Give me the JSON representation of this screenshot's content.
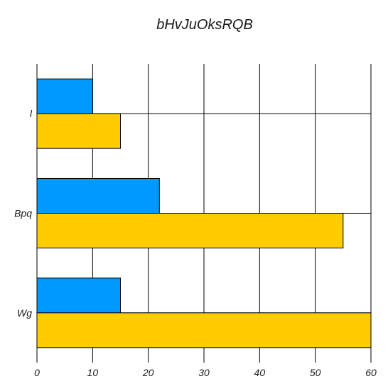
{
  "chart_data": {
    "type": "bar",
    "orientation": "horizontal",
    "title": "bHvJuOksRQB",
    "categories": [
      "l",
      "Bpq",
      "Wg"
    ],
    "series": [
      {
        "values": [
          10,
          22,
          15
        ],
        "color": "#0099ff"
      },
      {
        "values": [
          15,
          55,
          60
        ],
        "color": "#ffcc00"
      }
    ],
    "x_ticks": [
      0,
      10,
      20,
      30,
      40,
      50,
      60
    ],
    "xlim": [
      0,
      60
    ],
    "grid": true,
    "legend": "none"
  }
}
